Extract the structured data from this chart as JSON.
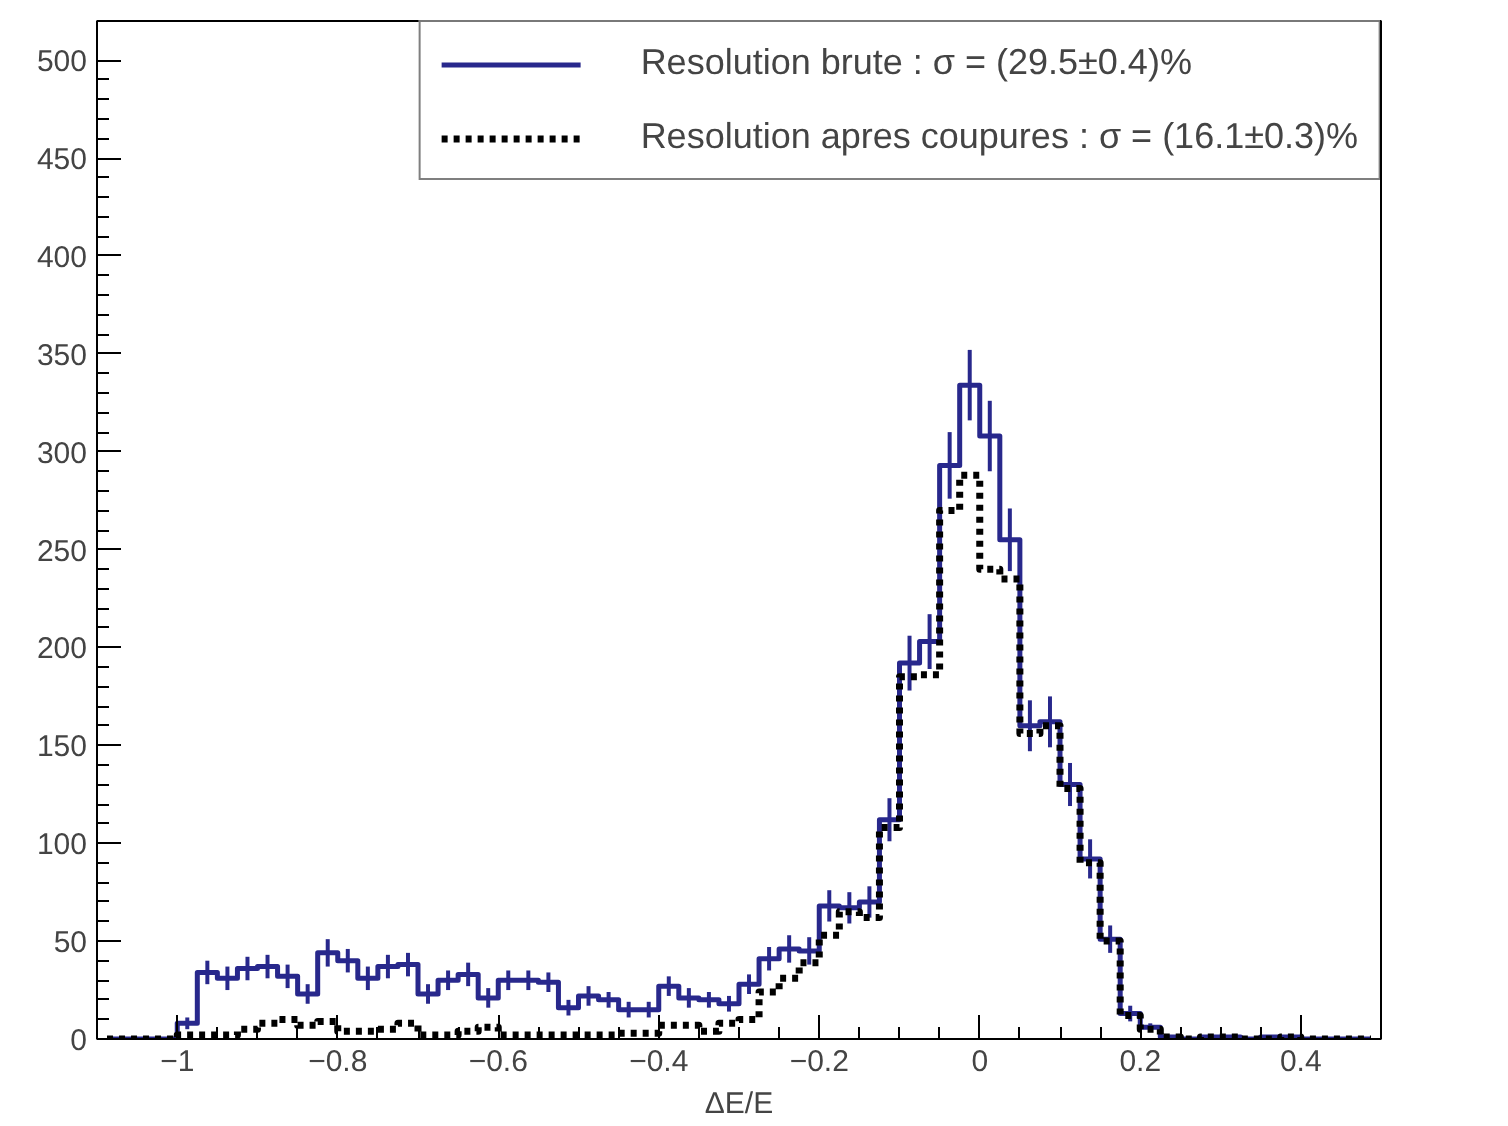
{
  "chart_data": {
    "type": "step",
    "xlabel": "ΔE/E",
    "x": [
      -1.0875,
      -1.0625,
      -1.0375,
      -1.0125,
      -0.9875,
      -0.9625,
      -0.9375,
      -0.9125,
      -0.8875,
      -0.8625,
      -0.8375,
      -0.8125,
      -0.7875,
      -0.7625,
      -0.7375,
      -0.7125,
      -0.6875,
      -0.6625,
      -0.6375,
      -0.6125,
      -0.5875,
      -0.5625,
      -0.5375,
      -0.5125,
      -0.4875,
      -0.4625,
      -0.4375,
      -0.4125,
      -0.3875,
      -0.3625,
      -0.3375,
      -0.3125,
      -0.2875,
      -0.2625,
      -0.2375,
      -0.2125,
      -0.1875,
      -0.1625,
      -0.1375,
      -0.1125,
      -0.0875,
      -0.0625,
      -0.0375,
      -0.0125,
      0.0125,
      0.0375,
      0.0625,
      0.0875,
      0.1125,
      0.1375,
      0.1625,
      0.1875,
      0.2125,
      0.2375,
      0.2625,
      0.2875,
      0.3125,
      0.3375,
      0.3625,
      0.3875,
      0.4125,
      0.4375,
      0.4625,
      0.4875
    ],
    "series": [
      {
        "name": "Resolution brute : σ = (29.5±0.4)%",
        "color": "#28288c",
        "line_style": "solid",
        "values": [
          0,
          0,
          0,
          0,
          8,
          34,
          31,
          36,
          37,
          32,
          23,
          44,
          40,
          31,
          37,
          38,
          23,
          30,
          33,
          21,
          30,
          30,
          29,
          16,
          22,
          20,
          15,
          15,
          27,
          21,
          20,
          18,
          28,
          41,
          46,
          45,
          68,
          67,
          70,
          112,
          192,
          203,
          293,
          334,
          308,
          255,
          160,
          162,
          130,
          92,
          51,
          13,
          6,
          1,
          0,
          1,
          1,
          0,
          1,
          1,
          0,
          0,
          0,
          0
        ],
        "errors": [
          null,
          null,
          null,
          null,
          3,
          6,
          6,
          6,
          6,
          6,
          5,
          7,
          6,
          6,
          6,
          6,
          5,
          5,
          6,
          5,
          5,
          5,
          5,
          4,
          5,
          4,
          4,
          4,
          5,
          5,
          4,
          4,
          5,
          6,
          7,
          7,
          8,
          8,
          8,
          11,
          14,
          14,
          17,
          18,
          18,
          16,
          13,
          13,
          11,
          10,
          7,
          4,
          2,
          null,
          null,
          null,
          null,
          null,
          null,
          null,
          null,
          null,
          null,
          null
        ]
      },
      {
        "name": "Resolution apres coupures : σ = (16.1±0.3)%",
        "color": "#000000",
        "line_style": "dotted",
        "values": [
          0,
          0,
          0,
          0,
          2,
          2,
          2,
          5,
          8,
          10,
          7,
          9,
          4,
          4,
          5,
          8,
          2,
          2,
          4,
          6,
          2,
          2,
          2,
          2,
          2,
          2,
          3,
          3,
          7,
          7,
          4,
          8,
          10,
          24,
          31,
          39,
          53,
          65,
          62,
          108,
          185,
          186,
          270,
          288,
          240,
          235,
          156,
          160,
          128,
          90,
          50,
          12,
          5,
          1,
          0,
          1,
          1,
          0,
          0,
          1,
          0,
          0,
          0,
          0
        ]
      }
    ],
    "xlim": [
      -1.1,
      0.5
    ],
    "xticks": [
      {
        "value": -1,
        "label": "−1"
      },
      {
        "value": -0.8,
        "label": "−0.8"
      },
      {
        "value": -0.6,
        "label": "−0.6"
      },
      {
        "value": -0.4,
        "label": "−0.4"
      },
      {
        "value": -0.2,
        "label": "−0.2"
      },
      0,
      0.2,
      0.4
    ],
    "ylim": [
      0,
      520
    ],
    "yticks": [
      0,
      50,
      100,
      150,
      200,
      250,
      300,
      350,
      400,
      450,
      500
    ],
    "grid": false,
    "legend": "top"
  }
}
